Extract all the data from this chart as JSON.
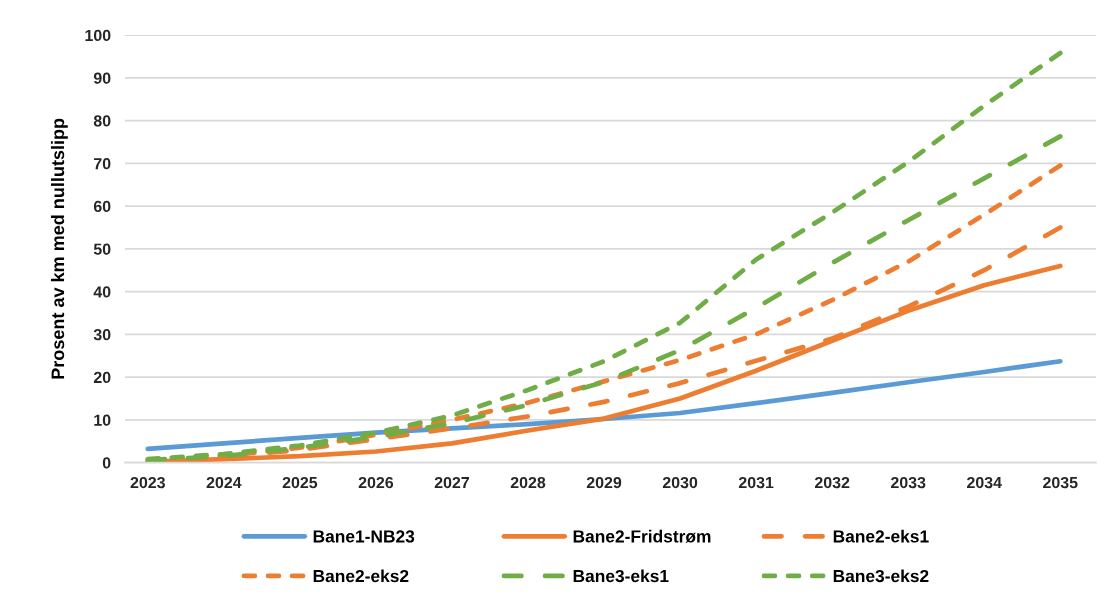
{
  "chart_data": {
    "type": "line",
    "ylabel": "Prosent av km med nullutslipp",
    "categories": [
      "2023",
      "2024",
      "2025",
      "2026",
      "2027",
      "2028",
      "2029",
      "2030",
      "2031",
      "2032",
      "2033",
      "2034",
      "2035"
    ],
    "ylim": [
      0,
      100
    ],
    "yticks": [
      0,
      10,
      20,
      30,
      40,
      50,
      60,
      70,
      80,
      90,
      100
    ],
    "grid": "y",
    "legend": "bottom",
    "series": [
      {
        "name": "Bane1-NB23",
        "color": "#5b9bd5",
        "line_style": "solid",
        "values": [
          3.2,
          4.5,
          5.8,
          7.0,
          8.0,
          9.0,
          10.2,
          11.6,
          13.9,
          16.3,
          18.8,
          21.2,
          23.7
        ]
      },
      {
        "name": "Bane2-Fridstrøm",
        "color": "#ed7d31",
        "line_style": "solid",
        "values": [
          0.2,
          0.8,
          1.5,
          2.6,
          4.5,
          7.5,
          10.3,
          15.0,
          21.5,
          28.5,
          35.5,
          41.5,
          46.0
        ]
      },
      {
        "name": "Bane2-eks1",
        "color": "#ed7d31",
        "line_style": "dashed",
        "values": [
          0.3,
          1.3,
          3.0,
          5.5,
          8.0,
          10.8,
          14.2,
          18.6,
          23.8,
          29.0,
          36.5,
          45.0,
          55.0
        ]
      },
      {
        "name": "Bane2-eks2",
        "color": "#ed7d31",
        "line_style": "dotted",
        "values": [
          0.3,
          1.5,
          3.5,
          6.5,
          10.0,
          14.0,
          19.0,
          24.0,
          30.0,
          38.0,
          47.0,
          58.0,
          69.5
        ]
      },
      {
        "name": "Bane3-eks1",
        "color": "#70ad47",
        "line_style": "dashed",
        "values": [
          0.6,
          1.5,
          3.5,
          6.0,
          9.2,
          13.5,
          18.9,
          26.3,
          36.2,
          46.7,
          56.7,
          66.5,
          76.3
        ]
      },
      {
        "name": "Bane3-eks2",
        "color": "#70ad47",
        "line_style": "dotted",
        "values": [
          0.8,
          2.0,
          4.0,
          7.0,
          11.0,
          17.0,
          23.7,
          32.7,
          47.5,
          58.5,
          70.3,
          83.5,
          95.8
        ]
      }
    ]
  }
}
